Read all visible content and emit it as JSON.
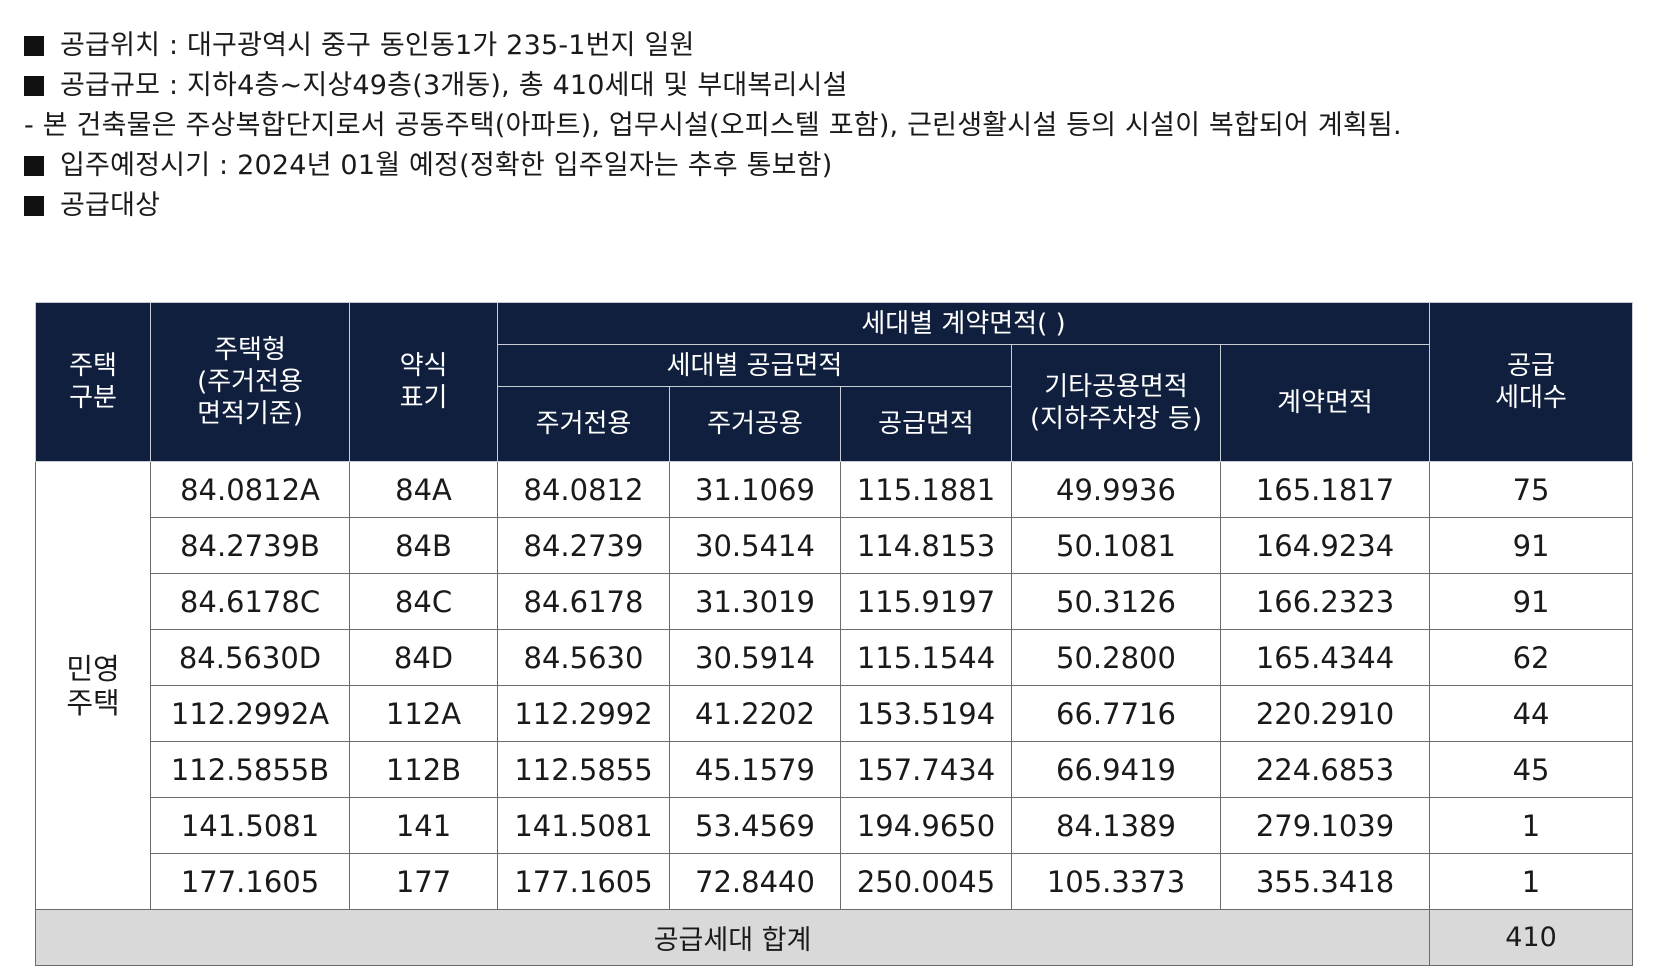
{
  "intro": {
    "line1": "공급위치 : 대구광역시 중구 동인동1가 235-1번지 일원",
    "line2": "공급규모 : 지하4층~지상49층(3개동), 총 410세대 및 부대복리시설",
    "para": "- 본 건축물은 주상복합단지로서 공동주택(아파트), 업무시설(오피스텔 포함), 근린생활시설 등의 시설이 복합되어 계획됨.",
    "line3": "입주예정시기 : 2024년 01월 예정(정확한 입주일자는 추후 통보함)",
    "line4": "공급대상"
  },
  "table": {
    "headers": {
      "house_type": [
        "주택",
        "구분"
      ],
      "unit_type": [
        "주택형",
        "(주거전용",
        "면적기준)"
      ],
      "short_label": [
        "약식",
        "표기"
      ],
      "contract_area_group": "세대별 계약면적( )",
      "supply_area_group": "세대별 공급면적",
      "exclusive": "주거전용",
      "common": "주거공용",
      "supply_area": "공급면적",
      "other_common": [
        "기타공용면적",
        "(지하주차장 등)"
      ],
      "contract_area": "계약면적",
      "households": [
        "공급",
        "세대수"
      ]
    },
    "category": [
      "민영",
      "주택"
    ],
    "rows": [
      {
        "type": "84.0812A",
        "short": "84A",
        "exclusive": "84.0812",
        "common": "31.1069",
        "supply": "115.1881",
        "other": "49.9936",
        "contract": "165.1817",
        "households": "75"
      },
      {
        "type": "84.2739B",
        "short": "84B",
        "exclusive": "84.2739",
        "common": "30.5414",
        "supply": "114.8153",
        "other": "50.1081",
        "contract": "164.9234",
        "households": "91"
      },
      {
        "type": "84.6178C",
        "short": "84C",
        "exclusive": "84.6178",
        "common": "31.3019",
        "supply": "115.9197",
        "other": "50.3126",
        "contract": "166.2323",
        "households": "91"
      },
      {
        "type": "84.5630D",
        "short": "84D",
        "exclusive": "84.5630",
        "common": "30.5914",
        "supply": "115.1544",
        "other": "50.2800",
        "contract": "165.4344",
        "households": "62"
      },
      {
        "type": "112.2992A",
        "short": "112A",
        "exclusive": "112.2992",
        "common": "41.2202",
        "supply": "153.5194",
        "other": "66.7716",
        "contract": "220.2910",
        "households": "44"
      },
      {
        "type": "112.5855B",
        "short": "112B",
        "exclusive": "112.5855",
        "common": "45.1579",
        "supply": "157.7434",
        "other": "66.9419",
        "contract": "224.6853",
        "households": "45"
      },
      {
        "type": "141.5081",
        "short": "141",
        "exclusive": "141.5081",
        "common": "53.4569",
        "supply": "194.9650",
        "other": "84.1389",
        "contract": "279.1039",
        "households": "1"
      },
      {
        "type": "177.1605",
        "short": "177",
        "exclusive": "177.1605",
        "common": "72.8440",
        "supply": "250.0045",
        "other": "105.3373",
        "contract": "355.3418",
        "households": "1"
      }
    ],
    "total": {
      "label": "공급세대 합계",
      "value": "410"
    }
  }
}
